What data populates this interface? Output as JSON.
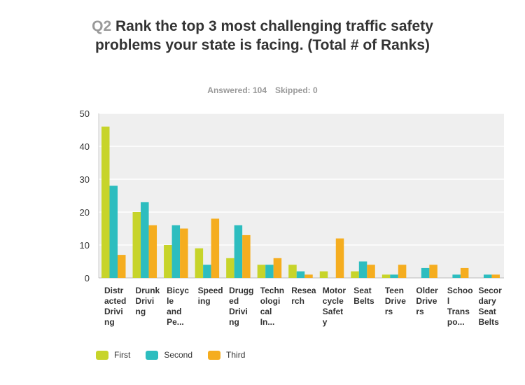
{
  "header": {
    "q_number": "Q2",
    "question": "Rank the top 3 most challenging traffic safety problems your state is facing. (Total # of Ranks)",
    "answered": "Answered: 104",
    "skipped": "Skipped: 0"
  },
  "chart_data": {
    "type": "bar",
    "title": "Q2 Rank the top 3 most challenging traffic safety problems your state is facing. (Total # of Ranks)",
    "categories": [
      "Distracted Driving",
      "Drunk Driving",
      "Bicycle and Pe...",
      "Speeding",
      "Drugged Driving",
      "Technological In...",
      "Research",
      "Motorcycle Safety",
      "Seat Belts",
      "Teen Drivers",
      "Older Drivers",
      "School Transpo...",
      "Secondary Seat Belts"
    ],
    "category_lines": [
      [
        "Distr",
        "acted",
        "Drivi",
        "ng"
      ],
      [
        "Drunk",
        "Drivi",
        "ng"
      ],
      [
        "Bicyc",
        "le",
        "and",
        "Pe..."
      ],
      [
        "Speed",
        "ing"
      ],
      [
        "Drugg",
        "ed",
        "Drivi",
        "ng"
      ],
      [
        "Techn",
        "ologi",
        "cal",
        "In..."
      ],
      [
        "Resea",
        "rch"
      ],
      [
        "Motor",
        "cycle",
        "Safet",
        "y"
      ],
      [
        "Seat",
        "Belts"
      ],
      [
        "Teen",
        "Drive",
        "rs"
      ],
      [
        "Older",
        "Drive",
        "rs"
      ],
      [
        "Schoo",
        "l",
        "Trans",
        "po..."
      ],
      [
        "Secor",
        "dary",
        "Seat",
        "Belts"
      ]
    ],
    "series": [
      {
        "name": "First",
        "color": "#c7d42a",
        "values": [
          46,
          20,
          10,
          9,
          6,
          4,
          4,
          2,
          2,
          1,
          0,
          0,
          0
        ]
      },
      {
        "name": "Second",
        "color": "#2dbdbf",
        "values": [
          28,
          23,
          16,
          4,
          16,
          4,
          2,
          0,
          5,
          1,
          3,
          1,
          1
        ]
      },
      {
        "name": "Third",
        "color": "#f5ad1f",
        "values": [
          7,
          16,
          15,
          18,
          13,
          6,
          1,
          12,
          4,
          4,
          4,
          3,
          1
        ]
      }
    ],
    "yticks": [
      0,
      10,
      20,
      30,
      40,
      50
    ],
    "ylim": [
      0,
      50
    ],
    "xlabel": "",
    "ylabel": "",
    "grid": true,
    "legend": "bottom-left"
  }
}
